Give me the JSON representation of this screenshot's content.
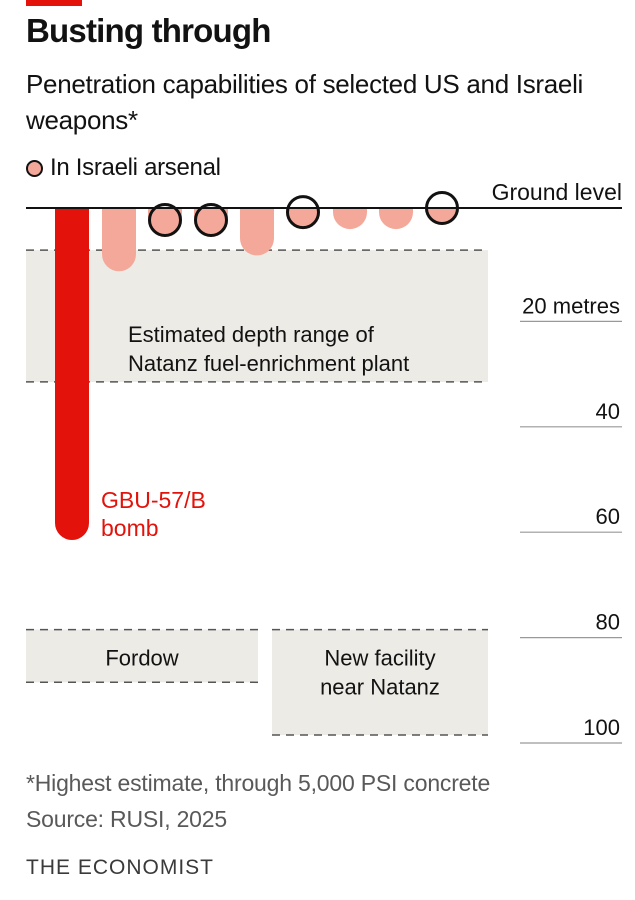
{
  "header": {
    "title": "Busting through",
    "subtitle": "Penetration capabilities of selected US and Israeli weapons*"
  },
  "legend": {
    "label": "In Israeli arsenal",
    "dot_color": "#f4a89a"
  },
  "footer": {
    "footnote": "*Highest estimate, through 5,000 PSI concrete",
    "source": "Source: RUSI, 2025",
    "brand": "THE ECONOMIST"
  },
  "chart_data": {
    "type": "bar",
    "orientation": "vertical-downward",
    "yaxis": {
      "top_label": "Ground level",
      "unit": "metres",
      "ticks": [
        {
          "value": 20,
          "label": "20 metres"
        },
        {
          "value": 40,
          "label": "40"
        },
        {
          "value": 60,
          "label": "60"
        },
        {
          "value": 80,
          "label": "80"
        },
        {
          "value": 100,
          "label": "100"
        }
      ],
      "ylim": [
        0,
        100
      ]
    },
    "series": [
      {
        "values": [
          {
            "depth": 63,
            "israeli_arsenal": false,
            "label": "GBU-57/B\nbomb",
            "color": "#e3120b"
          },
          {
            "depth": 12,
            "israeli_arsenal": false,
            "color": "#f4a89a"
          },
          {
            "depth": 5.5,
            "israeli_arsenal": true,
            "color": "#f4a89a"
          },
          {
            "depth": 5.5,
            "israeli_arsenal": true,
            "color": "#f4a89a"
          },
          {
            "depth": 9,
            "israeli_arsenal": false,
            "color": "#f4a89a"
          },
          {
            "depth": 4,
            "israeli_arsenal": true,
            "color": "#f4a89a"
          },
          {
            "depth": 4,
            "israeli_arsenal": false,
            "color": "#f4a89a"
          },
          {
            "depth": 4,
            "israeli_arsenal": false,
            "color": "#f4a89a"
          },
          {
            "depth": 2,
            "israeli_arsenal": true,
            "color": "#f4a89a"
          }
        ]
      }
    ],
    "ranges": [
      {
        "label": "Estimated depth range of Natanz fuel-enrichment plant",
        "from": 8,
        "to": 33
      },
      {
        "label": "Fordow",
        "from": 80,
        "to": 90
      },
      {
        "label": "New facility near Natanz",
        "from": 80,
        "to": 100
      }
    ]
  }
}
